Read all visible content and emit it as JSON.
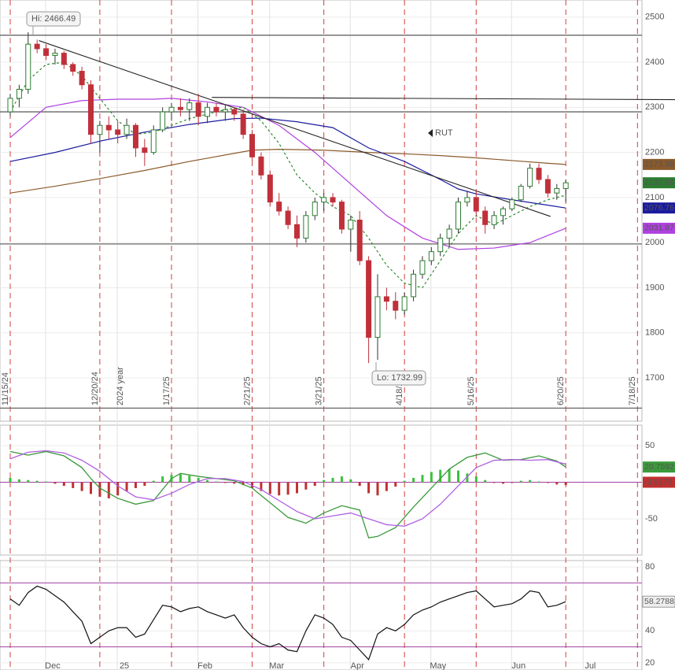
{
  "chart_data": [
    {
      "type": "candlestick",
      "title": "RUT",
      "categories": [
        "11/15/24",
        null,
        null,
        null,
        null,
        null,
        null,
        null,
        null,
        null,
        "12/20/24",
        null,
        null,
        null,
        null,
        null,
        null,
        null,
        "1/17/25",
        null,
        null,
        null,
        null,
        null,
        null,
        null,
        null,
        "2/21/25",
        null,
        null,
        null,
        null,
        null,
        null,
        null,
        "3/21/25",
        null,
        null,
        null,
        null,
        null,
        null,
        null,
        null,
        "4/18/25",
        null,
        null,
        null,
        null,
        null,
        null,
        null,
        "5/16/25",
        null,
        null,
        null,
        null,
        null,
        null,
        null,
        null,
        null,
        "6/20/25",
        null,
        null,
        null,
        null,
        null,
        null,
        null,
        "7/18/25"
      ],
      "ohlc": [
        [
          2290,
          2330,
          2280,
          2320
        ],
        [
          2320,
          2350,
          2300,
          2340
        ],
        [
          2340,
          2466.49,
          2330,
          2440
        ],
        [
          2440,
          2450,
          2420,
          2430
        ],
        [
          2430,
          2440,
          2405,
          2415
        ],
        [
          2415,
          2430,
          2395,
          2420
        ],
        [
          2420,
          2425,
          2385,
          2395
        ],
        [
          2395,
          2400,
          2370,
          2380
        ],
        [
          2380,
          2390,
          2340,
          2350
        ],
        [
          2350,
          2360,
          2220,
          2240
        ],
        [
          2240,
          2270,
          2200,
          2260
        ],
        [
          2260,
          2280,
          2230,
          2250
        ],
        [
          2250,
          2270,
          2220,
          2240
        ],
        [
          2240,
          2275,
          2230,
          2260
        ],
        [
          2260,
          2265,
          2190,
          2210
        ],
        [
          2210,
          2230,
          2170,
          2200
        ],
        [
          2200,
          2260,
          2195,
          2250
        ],
        [
          2250,
          2300,
          2245,
          2290
        ],
        [
          2290,
          2310,
          2270,
          2300
        ],
        [
          2300,
          2320,
          2280,
          2295
        ],
        [
          2295,
          2320,
          2270,
          2310
        ],
        [
          2310,
          2330,
          2260,
          2280
        ],
        [
          2280,
          2310,
          2265,
          2300
        ],
        [
          2300,
          2310,
          2280,
          2290
        ],
        [
          2290,
          2305,
          2270,
          2295
        ],
        [
          2295,
          2300,
          2270,
          2285
        ],
        [
          2285,
          2295,
          2230,
          2240
        ],
        [
          2240,
          2250,
          2180,
          2190
        ],
        [
          2190,
          2200,
          2140,
          2150
        ],
        [
          2150,
          2160,
          2080,
          2090
        ],
        [
          2090,
          2110,
          2060,
          2070
        ],
        [
          2070,
          2080,
          2030,
          2040
        ],
        [
          2040,
          2060,
          1990,
          2010
        ],
        [
          2010,
          2070,
          2000,
          2060
        ],
        [
          2060,
          2100,
          2050,
          2090
        ],
        [
          2090,
          2110,
          2070,
          2100
        ],
        [
          2100,
          2110,
          2080,
          2090
        ],
        [
          2090,
          2095,
          2020,
          2030
        ],
        [
          2030,
          2060,
          1980,
          2050
        ],
        [
          2050,
          2070,
          1950,
          1960
        ],
        [
          1960,
          1970,
          1732.99,
          1790
        ],
        [
          1790,
          1930,
          1740,
          1880
        ],
        [
          1880,
          1900,
          1850,
          1870
        ],
        [
          1870,
          1890,
          1830,
          1850
        ],
        [
          1850,
          1890,
          1840,
          1880
        ],
        [
          1880,
          1940,
          1870,
          1930
        ],
        [
          1930,
          1970,
          1920,
          1960
        ],
        [
          1960,
          1990,
          1950,
          1980
        ],
        [
          1980,
          2020,
          1970,
          2010
        ],
        [
          2010,
          2040,
          1990,
          2030
        ],
        [
          2030,
          2100,
          2020,
          2090
        ],
        [
          2090,
          2115,
          2080,
          2100
        ],
        [
          2100,
          2115,
          2060,
          2070
        ],
        [
          2070,
          2080,
          2020,
          2040
        ],
        [
          2040,
          2070,
          2030,
          2060
        ],
        [
          2060,
          2080,
          2040,
          2075
        ],
        [
          2075,
          2100,
          2070,
          2095
        ],
        [
          2095,
          2130,
          2090,
          2125
        ],
        [
          2125,
          2175,
          2120,
          2165
        ],
        [
          2165,
          2175,
          2130,
          2140
        ],
        [
          2140,
          2150,
          2100,
          2110
        ],
        [
          2110,
          2130,
          2095,
          2120
        ],
        [
          2120,
          2140,
          2090,
          2132.68
        ],
        null,
        null,
        null,
        null,
        null,
        null,
        null,
        null
      ],
      "up_color": "#2e7d32",
      "down_color": "#c0303a",
      "ylim": [
        1604,
        2538
      ],
      "yticks": [
        1700,
        1800,
        1900,
        2000,
        2100,
        2200,
        2300,
        2400,
        2500
      ],
      "grid": true,
      "series": [
        {
          "color": "#8b5a2b",
          "x": [
            0,
            5,
            10,
            15,
            20,
            25,
            27,
            30,
            35,
            40,
            44,
            48,
            52,
            56,
            60,
            62
          ],
          "values": [
            2110,
            2125,
            2142,
            2160,
            2180,
            2198,
            2205,
            2207,
            2205,
            2200,
            2197,
            2193,
            2188,
            2182,
            2176,
            2173.38
          ]
        },
        {
          "color": "#1a1aa0",
          "x": [
            0,
            5,
            10,
            15,
            20,
            25,
            28,
            32,
            36,
            40,
            44,
            48,
            50,
            52,
            56,
            60,
            62
          ],
          "values": [
            2180,
            2200,
            2225,
            2245,
            2262,
            2275,
            2276,
            2268,
            2255,
            2210,
            2180,
            2140,
            2119,
            2108,
            2095,
            2083,
            2076.76
          ]
        },
        {
          "color": "#b040e0",
          "x": [
            0,
            4,
            8,
            12,
            16,
            18,
            22,
            26,
            30,
            34,
            38,
            42,
            46,
            50,
            54,
            58,
            62
          ],
          "values": [
            2233,
            2300,
            2315,
            2318,
            2318,
            2320,
            2312,
            2300,
            2260,
            2200,
            2130,
            2060,
            2010,
            1985,
            1988,
            2000,
            2031.87
          ]
        },
        {
          "color": "#2e8b2e",
          "dashed": true,
          "x": [
            0,
            2,
            4,
            6,
            8,
            10,
            12,
            14,
            16,
            18,
            20,
            22,
            24,
            26,
            28,
            30,
            32,
            34,
            36,
            38,
            40,
            42,
            44,
            46,
            48,
            50,
            52,
            54,
            56,
            58,
            60,
            62
          ],
          "values": [
            2290,
            2360,
            2395,
            2400,
            2370,
            2320,
            2270,
            2240,
            2245,
            2260,
            2275,
            2285,
            2295,
            2300,
            2270,
            2220,
            2150,
            2110,
            2080,
            2060,
            2010,
            1950,
            1910,
            1900,
            1960,
            2020,
            2060,
            2040,
            2060,
            2080,
            2095,
            2105
          ]
        }
      ],
      "hlines": [
        2460,
        2290,
        1997,
        1633
      ],
      "trendlines": [
        {
          "x": [
            3.2,
            60.3
          ],
          "values": [
            2448,
            2058
          ]
        },
        {
          "x": [
            22.5,
            74.2
          ],
          "values": [
            2322,
            2317
          ]
        }
      ],
      "annotations": {
        "high": "Hi: 2466.49",
        "low": "Lo: 1732.99",
        "year": "2024 year"
      }
    },
    {
      "type": "macd",
      "ylim": [
        -99.5,
        78
      ],
      "yticks": [
        -50,
        50
      ],
      "series": [
        {
          "color": "#3a9a3a",
          "x": [
            0,
            2,
            4,
            6,
            8,
            9,
            10,
            12,
            14,
            16,
            17,
            18,
            19,
            21,
            23,
            25,
            27,
            29,
            31,
            33,
            35,
            37,
            39,
            40,
            41,
            43,
            45,
            47,
            49,
            51,
            53,
            55,
            57,
            59,
            61,
            62
          ],
          "values": [
            42,
            37,
            42,
            36,
            20,
            5,
            -8,
            -22,
            -30,
            -25,
            -10,
            5,
            12,
            8,
            5,
            2,
            -8,
            -28,
            -48,
            -56,
            -42,
            -32,
            -38,
            -76,
            -74,
            -62,
            -34,
            -8,
            18,
            34,
            40,
            30,
            31,
            36,
            29,
            20.7592
          ]
        },
        {
          "color": "#b060e0",
          "x": [
            0,
            2,
            4,
            6,
            8,
            10,
            12,
            14,
            16,
            18,
            20,
            22,
            24,
            26,
            28,
            30,
            32,
            34,
            36,
            38,
            40,
            42,
            44,
            46,
            48,
            50,
            52,
            54,
            56,
            58,
            60,
            62
          ],
          "values": [
            32,
            41,
            43,
            40,
            30,
            15,
            -5,
            -20,
            -24,
            -15,
            -3,
            5,
            5,
            1,
            -10,
            -25,
            -40,
            -50,
            -46,
            -42,
            -50,
            -58,
            -60,
            -50,
            -30,
            -5,
            20,
            30,
            31,
            30,
            31,
            24.68
          ]
        }
      ],
      "histogram": {
        "up_color": "#3cc03c",
        "down_color": "#c03030",
        "values": [
          6,
          4,
          3,
          2,
          1,
          -2,
          -5,
          -8,
          -12,
          -16,
          -20,
          -22,
          -18,
          -12,
          -8,
          -5,
          2,
          8,
          10,
          11,
          9,
          6,
          3,
          1,
          -1,
          -2,
          -4,
          -8,
          -12,
          -16,
          -18,
          -17,
          -15,
          -10,
          -5,
          3,
          6,
          8,
          4,
          -5,
          -15,
          -18,
          -12,
          -6,
          2,
          6,
          10,
          14,
          17,
          18,
          16,
          12,
          8,
          3,
          -1,
          -2,
          -1,
          2,
          3,
          1,
          -1,
          -3,
          -3.9173,
          null,
          null,
          null,
          null,
          null,
          null,
          null,
          null
        ]
      }
    },
    {
      "type": "rsi",
      "color": "#111111",
      "ylim": [
        15.5,
        84
      ],
      "yticks": [
        20,
        40,
        80
      ],
      "hlines": [
        70,
        30
      ],
      "hline_color": "#a040a0",
      "categories": [
        null,
        null,
        null,
        null,
        null,
        "Dec",
        null,
        null,
        null,
        null,
        null,
        null,
        null,
        "25",
        null,
        null,
        null,
        null,
        null,
        null,
        null,
        null,
        "Feb",
        null,
        null,
        null,
        null,
        null,
        null,
        null,
        "Mar",
        null,
        null,
        null,
        null,
        null,
        null,
        null,
        null,
        "Apr",
        null,
        null,
        null,
        null,
        null,
        null,
        null,
        null,
        "May",
        null,
        null,
        null,
        null,
        null,
        null,
        null,
        null,
        "Jun",
        null,
        null,
        null,
        null,
        null,
        null,
        null,
        "Jul",
        null,
        null,
        null,
        null,
        null
      ],
      "values": [
        60,
        56,
        64,
        68,
        66,
        62,
        58,
        52,
        46,
        32,
        36,
        40,
        42,
        42,
        36,
        38,
        47,
        56,
        55,
        52,
        54,
        55,
        52,
        50,
        48,
        50,
        42,
        36,
        32,
        30,
        32,
        28,
        27,
        40,
        50,
        48,
        44,
        36,
        34,
        28,
        22,
        38,
        42,
        40,
        44,
        50,
        53,
        55,
        58,
        60,
        62,
        64,
        65,
        60,
        55,
        56,
        57,
        60,
        65,
        64,
        55,
        56,
        58.2788,
        null,
        null,
        null,
        null,
        null,
        null,
        null,
        null
      ]
    }
  ]
}
